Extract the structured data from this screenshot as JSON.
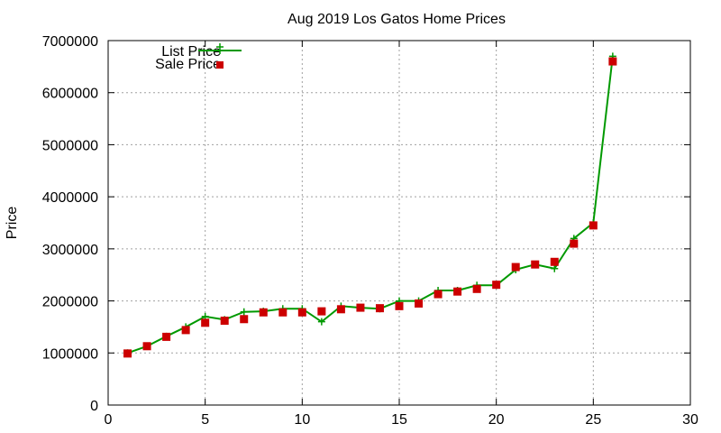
{
  "chart_data": {
    "type": "line",
    "title": "Aug 2019 Los Gatos Home Prices",
    "xlabel": "",
    "ylabel": "Price",
    "xlim": [
      0,
      30
    ],
    "ylim": [
      0,
      7000000
    ],
    "xticks": [
      "0",
      "5",
      "10",
      "15",
      "20",
      "25",
      "30"
    ],
    "yticks": [
      "0",
      "1000000",
      "2000000",
      "3000000",
      "4000000",
      "5000000",
      "6000000",
      "7000000"
    ],
    "grid": true,
    "legend_position": "top-left",
    "series": [
      {
        "name": "List Price",
        "style": "line-with-plus-markers",
        "color": "#009900",
        "x": [
          1,
          2,
          3,
          4,
          5,
          6,
          7,
          8,
          9,
          10,
          11,
          12,
          13,
          14,
          15,
          16,
          17,
          18,
          19,
          20,
          21,
          22,
          23,
          24,
          25,
          26
        ],
        "values": [
          1000000,
          1130000,
          1320000,
          1500000,
          1700000,
          1640000,
          1790000,
          1800000,
          1850000,
          1850000,
          1600000,
          1900000,
          1870000,
          1850000,
          2000000,
          2000000,
          2200000,
          2200000,
          2300000,
          2300000,
          2600000,
          2700000,
          2620000,
          3200000,
          3500000,
          6700000
        ]
      },
      {
        "name": "Sale Price",
        "style": "square-markers",
        "color": "#cc0000",
        "x": [
          1,
          2,
          3,
          4,
          5,
          6,
          7,
          8,
          9,
          10,
          11,
          12,
          13,
          14,
          15,
          16,
          17,
          18,
          19,
          20,
          21,
          22,
          23,
          24,
          25,
          26
        ],
        "values": [
          990000,
          1130000,
          1310000,
          1440000,
          1580000,
          1620000,
          1650000,
          1780000,
          1780000,
          1780000,
          1800000,
          1840000,
          1870000,
          1860000,
          1900000,
          1950000,
          2130000,
          2180000,
          2230000,
          2310000,
          2650000,
          2700000,
          2750000,
          3100000,
          3450000,
          6600000
        ]
      }
    ]
  }
}
